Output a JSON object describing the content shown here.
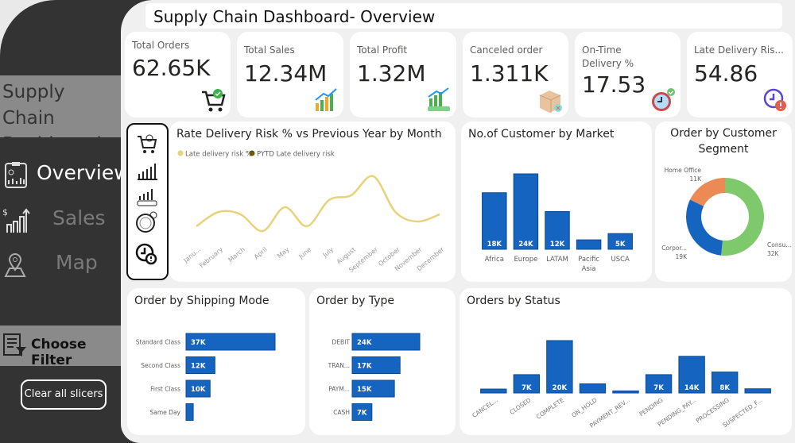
{
  "sidebar": {
    "title": "Supply Chain Dashboard",
    "nav": [
      {
        "label": "Overview",
        "icon": "clipboard-report-icon",
        "active": true
      },
      {
        "label": "Sales",
        "icon": "sales-chart-icon",
        "active": false
      },
      {
        "label": "Map",
        "icon": "map-pin-icon",
        "active": false
      }
    ],
    "filter_label": "Choose Filter",
    "clear_button": "Clear all slicers"
  },
  "header": {
    "title": "Supply Chain Dashboard- Overview"
  },
  "kpis": [
    {
      "label": "Total Orders",
      "value": "62.65K",
      "icon": "cart-check-icon"
    },
    {
      "label": "Total Sales",
      "value": "12.34M",
      "icon": "sales-growth-icon"
    },
    {
      "label": "Total Profit",
      "value": "1.32M",
      "icon": "profit-chart-icon"
    },
    {
      "label": "Canceled order",
      "value": "1.311K",
      "icon": "box-cancel-icon"
    },
    {
      "label": "On-Time Delivery %",
      "value": "17.53",
      "icon": "clock-check-icon"
    },
    {
      "label": "Late Delivery Ris...",
      "value": "54.86",
      "icon": "clock-alert-icon"
    }
  ],
  "icon_strip": [
    "cart-check-icon",
    "sales-chart-icon",
    "profit-chart-icon",
    "speedometer-icon",
    "clock-alert-icon"
  ],
  "colors": {
    "bar": "#1565c0",
    "bar_border": "#0d4a8f",
    "line": "#e8d27a",
    "pytd": "#6b5a00",
    "consumer": "#7dc96b",
    "corporate": "#1565c0",
    "home_office": "#eb8a55"
  },
  "chart_data": [
    {
      "type": "line",
      "title": "Rate Delivery Risk % vs Previous Year by Month",
      "legend": [
        {
          "name": "Late delivery risk %",
          "color": "#e8d27a"
        },
        {
          "name": "PYTD Late delivery risk",
          "color": "#6b5a00"
        }
      ],
      "categories": [
        "Janu...",
        "February",
        "March",
        "April",
        "May",
        "June",
        "July",
        "August",
        "September",
        "October",
        "November",
        "December"
      ],
      "series": [
        {
          "name": "Late delivery risk %",
          "values": [
            54.7,
            55.0,
            54.95,
            54.6,
            55.1,
            54.7,
            55.25,
            55.35,
            55.75,
            55.0,
            54.8,
            54.95
          ]
        }
      ],
      "ylim": [
        54.4,
        55.9
      ],
      "grid": false
    },
    {
      "type": "bar",
      "title": "No.of Customer by Market",
      "categories": [
        "Africa",
        "Europe",
        "LATAM",
        "Pacific Asia",
        "USCA"
      ],
      "values": [
        18,
        24,
        12,
        3,
        5
      ],
      "labels": [
        "18K",
        "24K",
        "12K",
        "",
        "5K"
      ]
    },
    {
      "type": "pie",
      "title": "Order by Customer Segment",
      "categories": [
        "Consu...",
        "Corpor...",
        "Home Office"
      ],
      "values": [
        32,
        19,
        11
      ],
      "labels": [
        "32K",
        "19K",
        "11K"
      ]
    },
    {
      "type": "bar",
      "orientation": "horizontal",
      "title": "Order by Shipping Mode",
      "categories": [
        "Standard Class",
        "Second Class",
        "First Class",
        "Same Day"
      ],
      "values": [
        37,
        12,
        10,
        3
      ],
      "labels": [
        "37K",
        "12K",
        "10K",
        ""
      ]
    },
    {
      "type": "bar",
      "orientation": "horizontal",
      "title": "Order by Type",
      "categories": [
        "DEBIT",
        "TRAN...",
        "PAYM...",
        "CASH"
      ],
      "values": [
        24,
        17,
        15,
        7
      ],
      "labels": [
        "24K",
        "17K",
        "15K",
        "7K"
      ]
    },
    {
      "type": "bar",
      "title": "Orders by Status",
      "categories": [
        "CANCEL...",
        "CLOSED",
        "COMPLETE",
        "ON_HOLD",
        "PAYMENT_REV...",
        "PENDING",
        "PENDING_PAY...",
        "PROCESSING",
        "SUSPECTED_F..."
      ],
      "values": [
        1.5,
        7,
        20,
        3.5,
        0.8,
        7,
        14,
        8,
        1.6
      ],
      "labels": [
        "",
        "7K",
        "20K",
        "",
        "",
        "7K",
        "14K",
        "8K",
        ""
      ]
    }
  ]
}
